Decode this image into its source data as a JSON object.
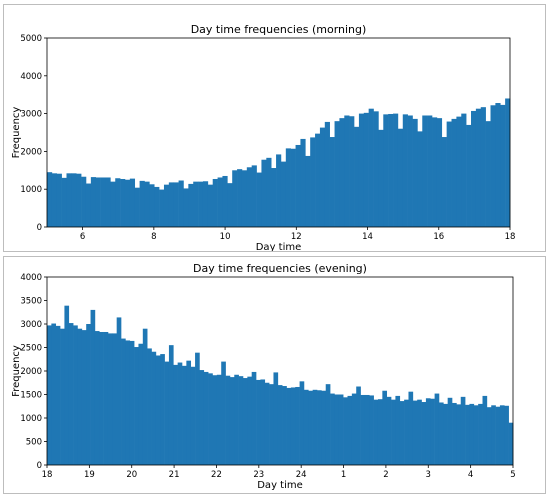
{
  "chart_data": [
    {
      "type": "bar",
      "title": "Day time frequencies (morning)",
      "xlabel": "Day time",
      "ylabel": "Frequency",
      "xlim": [
        5,
        18
      ],
      "ylim": [
        0,
        5000
      ],
      "xticks": [
        6,
        8,
        10,
        12,
        14,
        16,
        18
      ],
      "xtick_labels": [
        "6",
        "8",
        "10",
        "12",
        "14",
        "16",
        "18"
      ],
      "yticks": [
        0,
        1000,
        2000,
        3000,
        4000,
        5000
      ],
      "bar_color": "#1f77b4",
      "grid": false,
      "values": [
        1450,
        1420,
        1410,
        1300,
        1420,
        1420,
        1410,
        1330,
        1150,
        1320,
        1310,
        1310,
        1310,
        1200,
        1290,
        1270,
        1250,
        1280,
        1040,
        1220,
        1200,
        1130,
        1060,
        990,
        1120,
        1180,
        1180,
        1230,
        1020,
        1140,
        1200,
        1200,
        1210,
        1120,
        1270,
        1310,
        1350,
        1160,
        1500,
        1530,
        1500,
        1580,
        1630,
        1440,
        1780,
        1830,
        1560,
        1920,
        1730,
        2080,
        2070,
        2170,
        2330,
        1880,
        2370,
        2470,
        2630,
        2780,
        2380,
        2800,
        2880,
        2950,
        2930,
        2650,
        3000,
        3020,
        3130,
        3060,
        2570,
        2980,
        2990,
        3000,
        2600,
        2980,
        2950,
        2860,
        2530,
        2950,
        2950,
        2900,
        2880,
        2380,
        2790,
        2860,
        2920,
        3000,
        2700,
        3070,
        3130,
        3170,
        2800,
        3220,
        3280,
        3230,
        3400
      ]
    },
    {
      "type": "bar",
      "title": "Day time frequencies (evening)",
      "xlabel": "Day time",
      "ylabel": "Frequency",
      "xlim": [
        0,
        11
      ],
      "ylim": [
        0,
        4000
      ],
      "xticks": [
        0,
        1,
        2,
        3,
        4,
        5,
        6,
        7,
        8,
        9,
        10,
        11
      ],
      "xtick_labels": [
        "18",
        "19",
        "20",
        "21",
        "22",
        "23",
        "24",
        "1",
        "2",
        "3",
        "4",
        "5"
      ],
      "yticks": [
        0,
        500,
        1000,
        1500,
        2000,
        2500,
        3000,
        3500,
        4000
      ],
      "bar_color": "#1f77b4",
      "grid": false,
      "values": [
        2970,
        3010,
        2960,
        2900,
        3390,
        3020,
        2970,
        2900,
        2870,
        3000,
        3300,
        2850,
        2830,
        2830,
        2800,
        2800,
        3140,
        2690,
        2650,
        2640,
        2510,
        2580,
        2900,
        2480,
        2410,
        2330,
        2360,
        2200,
        2550,
        2130,
        2180,
        2110,
        2220,
        2090,
        2390,
        2020,
        1980,
        1950,
        1910,
        1920,
        2200,
        1900,
        1870,
        1920,
        1890,
        1850,
        1880,
        1980,
        1810,
        1820,
        1750,
        1720,
        1970,
        1700,
        1680,
        1640,
        1650,
        1660,
        1780,
        1600,
        1580,
        1600,
        1590,
        1580,
        1720,
        1520,
        1500,
        1500,
        1440,
        1470,
        1520,
        1670,
        1490,
        1490,
        1480,
        1390,
        1400,
        1580,
        1450,
        1390,
        1470,
        1360,
        1390,
        1560,
        1370,
        1390,
        1340,
        1420,
        1410,
        1520,
        1330,
        1300,
        1430,
        1320,
        1290,
        1450,
        1280,
        1300,
        1270,
        1300,
        1470,
        1230,
        1270,
        1240,
        1270,
        1260,
        900
      ]
    }
  ]
}
